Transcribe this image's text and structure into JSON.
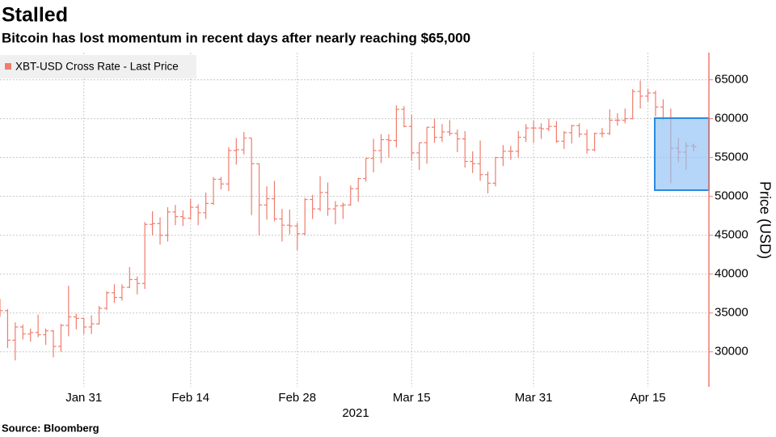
{
  "chart_data": {
    "type": "ohlc",
    "title": "Stalled",
    "subtitle": "Bitcoin has lost momentum in recent days after nearly reaching $65,000",
    "source": "Source: Bloomberg",
    "xlabel": "2021",
    "ylabel": "Price (USD)",
    "legend": "top-left",
    "grid": true,
    "xlim": [
      "2021-01-20",
      "2021-04-23"
    ],
    "xticks": [
      {
        "value": "2021-01-31",
        "label": "Jan 31"
      },
      {
        "value": "2021-02-14",
        "label": "Feb 14"
      },
      {
        "value": "2021-02-28",
        "label": "Feb 28"
      },
      {
        "value": "2021-03-15",
        "label": "Mar 15"
      },
      {
        "value": "2021-03-31",
        "label": "Mar 31"
      },
      {
        "value": "2021-04-15",
        "label": "Apr 15"
      }
    ],
    "ylim": [
      25500,
      68500
    ],
    "yticks": [
      30000,
      35000,
      40000,
      45000,
      50000,
      55000,
      60000,
      65000
    ],
    "x": [
      "2021-01-20",
      "2021-01-21",
      "2021-01-22",
      "2021-01-23",
      "2021-01-24",
      "2021-01-25",
      "2021-01-26",
      "2021-01-27",
      "2021-01-28",
      "2021-01-29",
      "2021-01-30",
      "2021-01-31",
      "2021-02-01",
      "2021-02-02",
      "2021-02-03",
      "2021-02-04",
      "2021-02-05",
      "2021-02-06",
      "2021-02-07",
      "2021-02-08",
      "2021-02-09",
      "2021-02-10",
      "2021-02-11",
      "2021-02-12",
      "2021-02-13",
      "2021-02-14",
      "2021-02-15",
      "2021-02-16",
      "2021-02-17",
      "2021-02-18",
      "2021-02-19",
      "2021-02-20",
      "2021-02-21",
      "2021-02-22",
      "2021-02-23",
      "2021-02-24",
      "2021-02-25",
      "2021-02-26",
      "2021-02-27",
      "2021-02-28",
      "2021-03-01",
      "2021-03-02",
      "2021-03-03",
      "2021-03-04",
      "2021-03-05",
      "2021-03-06",
      "2021-03-07",
      "2021-03-08",
      "2021-03-09",
      "2021-03-10",
      "2021-03-11",
      "2021-03-12",
      "2021-03-13",
      "2021-03-14",
      "2021-03-15",
      "2021-03-16",
      "2021-03-17",
      "2021-03-18",
      "2021-03-19",
      "2021-03-20",
      "2021-03-21",
      "2021-03-22",
      "2021-03-23",
      "2021-03-24",
      "2021-03-25",
      "2021-03-26",
      "2021-03-27",
      "2021-03-28",
      "2021-03-29",
      "2021-03-30",
      "2021-03-31",
      "2021-04-01",
      "2021-04-02",
      "2021-04-03",
      "2021-04-04",
      "2021-04-05",
      "2021-04-06",
      "2021-04-07",
      "2021-04-08",
      "2021-04-09",
      "2021-04-10",
      "2021-04-11",
      "2021-04-12",
      "2021-04-13",
      "2021-04-14",
      "2021-04-15",
      "2021-04-16",
      "2021-04-17",
      "2021-04-18",
      "2021-04-19",
      "2021-04-20",
      "2021-04-21"
    ],
    "series": [
      {
        "name": "XBT-USD Cross Rate - Last Price",
        "color": "#ef7d6e",
        "open": [
          36000,
          35300,
          31500,
          33200,
          32300,
          32500,
          32200,
          32700,
          30700,
          33400,
          34500,
          34300,
          33200,
          33600,
          35600,
          37600,
          37000,
          38300,
          39300,
          38800,
          46400,
          46500,
          45000,
          48000,
          47400,
          47200,
          48600,
          47900,
          49100,
          52200,
          51600,
          55900,
          56000,
          57500,
          54200,
          48900,
          49700,
          47100,
          46300,
          46200,
          45200,
          49600,
          48400,
          50500,
          48400,
          48800,
          48900,
          51000,
          52300,
          54900,
          55900,
          57300,
          57200,
          61200,
          59000,
          55600,
          56900,
          58900,
          57600,
          58300,
          58100,
          57400,
          54500,
          54200,
          52800,
          51700,
          55000,
          55800,
          55800,
          57600,
          58800,
          58800,
          58700,
          59000,
          57100,
          58200,
          59100,
          58000,
          56000,
          58100,
          58100,
          59800,
          59800,
          60000,
          63500,
          62900,
          63300,
          61500,
          60100,
          56200,
          55700,
          56500
        ],
        "high": [
          36800,
          35500,
          33800,
          33500,
          33000,
          34800,
          33000,
          32800,
          33600,
          38500,
          34900,
          34400,
          34700,
          35900,
          37800,
          38700,
          38700,
          40900,
          39700,
          46700,
          48100,
          47300,
          48600,
          48900,
          48200,
          49700,
          49000,
          50500,
          52500,
          52500,
          56300,
          57500,
          58300,
          57500,
          54200,
          51300,
          52000,
          48400,
          48300,
          46600,
          49800,
          50200,
          52600,
          51800,
          49400,
          49200,
          51400,
          52400,
          54900,
          57400,
          58000,
          58000,
          61700,
          61600,
          60500,
          56900,
          58900,
          60000,
          59300,
          59800,
          58600,
          58400,
          55800,
          57200,
          53200,
          55100,
          56600,
          56500,
          58400,
          59300,
          59800,
          59400,
          60000,
          59700,
          58400,
          59200,
          59400,
          58600,
          58200,
          58800,
          61200,
          60700,
          61300,
          63800,
          64900,
          63800,
          63600,
          62500,
          61300,
          57500,
          57000,
          56800
        ],
        "low": [
          34500,
          30500,
          28900,
          31600,
          31300,
          31900,
          30900,
          29300,
          30000,
          32000,
          32900,
          32300,
          32300,
          33500,
          35400,
          36300,
          36600,
          38200,
          37400,
          38100,
          45000,
          43800,
          44200,
          46300,
          46200,
          47000,
          46300,
          47100,
          48900,
          50900,
          50700,
          54100,
          55400,
          47600,
          45000,
          47000,
          46800,
          44200,
          45100,
          43100,
          45000,
          47100,
          48100,
          47500,
          46400,
          47100,
          48800,
          49300,
          51900,
          53100,
          54300,
          55000,
          56300,
          58900,
          54600,
          53400,
          54200,
          56900,
          57000,
          57800,
          55700,
          53700,
          53000,
          52000,
          50400,
          51300,
          53900,
          54700,
          55000,
          57000,
          56900,
          57400,
          58400,
          56900,
          56100,
          56800,
          57600,
          55500,
          55800,
          57600,
          57900,
          59100,
          59400,
          59900,
          61300,
          62200,
          60300,
          59800,
          51700,
          54400,
          53400,
          55800
        ],
        "close": [
          35300,
          31500,
          33200,
          32300,
          32500,
          32200,
          32700,
          30700,
          33400,
          34500,
          34300,
          33200,
          33600,
          35600,
          37600,
          37000,
          38300,
          39300,
          38800,
          46400,
          46500,
          45000,
          48000,
          47400,
          47200,
          48600,
          47900,
          49100,
          52200,
          51600,
          55900,
          56000,
          57500,
          54200,
          48900,
          49700,
          47100,
          46300,
          46200,
          45200,
          49600,
          48400,
          50500,
          48400,
          48800,
          48900,
          51000,
          52300,
          54900,
          55900,
          57300,
          57200,
          61200,
          59000,
          55600,
          56900,
          58900,
          57600,
          58300,
          58100,
          57400,
          54500,
          54200,
          52800,
          51700,
          55000,
          55800,
          55800,
          57600,
          58800,
          58800,
          58700,
          59000,
          57100,
          58200,
          59100,
          58000,
          56000,
          58100,
          58100,
          59800,
          59800,
          60000,
          63500,
          62900,
          63300,
          61500,
          60100,
          56200,
          55700,
          56500,
          56400
        ]
      }
    ]
  }
}
